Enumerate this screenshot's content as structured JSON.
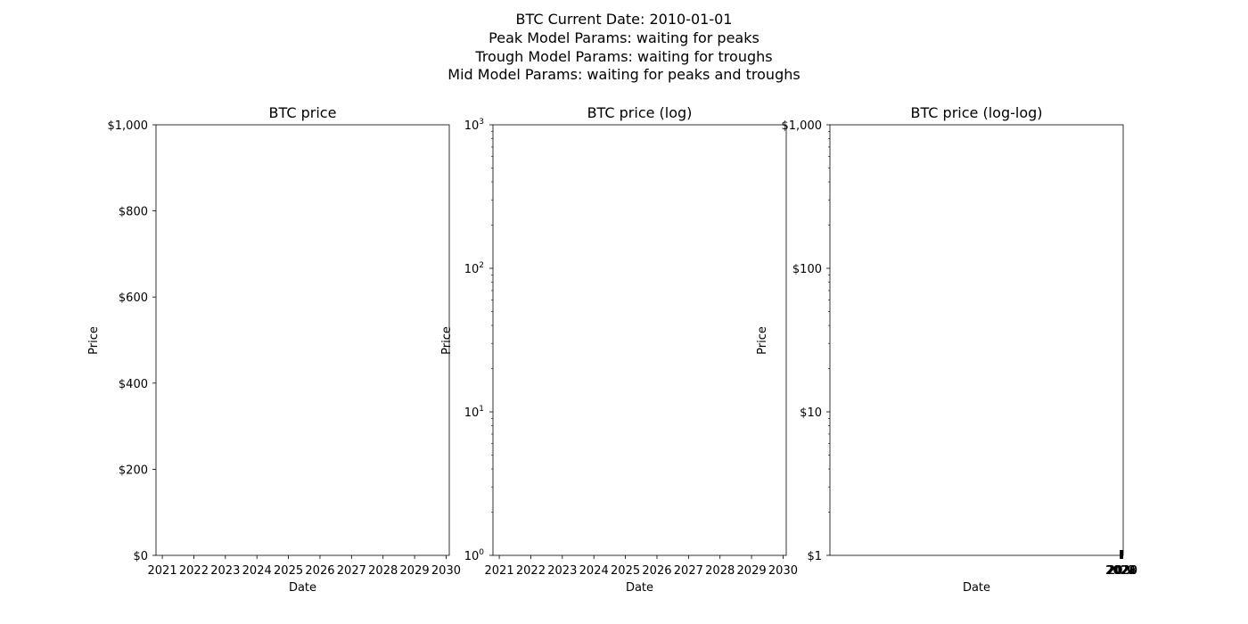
{
  "figure_title": [
    "BTC Current Date: 2010-01-01",
    "Peak Model Params: waiting for peaks",
    "Trough Model Params: waiting for troughs",
    "Mid Model Params: waiting for peaks and troughs"
  ],
  "chart_data": [
    {
      "type": "line",
      "title": "BTC price",
      "xlabel": "Date",
      "ylabel": "Price",
      "xscale": "linear",
      "yscale": "linear",
      "xlim": [
        2020.8,
        2030.1
      ],
      "ylim": [
        0,
        1000
      ],
      "xticks": [
        2021,
        2022,
        2023,
        2024,
        2025,
        2026,
        2027,
        2028,
        2029,
        2030
      ],
      "xtick_labels": [
        "2021",
        "2022",
        "2023",
        "2024",
        "2025",
        "2026",
        "2027",
        "2028",
        "2029",
        "2030"
      ],
      "yticks": [
        0,
        200,
        400,
        600,
        800,
        1000
      ],
      "ytick_labels": [
        "$0",
        "$200",
        "$400",
        "$600",
        "$800",
        "$1,000"
      ],
      "series": []
    },
    {
      "type": "line",
      "title": "BTC price (log)",
      "xlabel": "Date",
      "ylabel": "Price",
      "xscale": "linear",
      "yscale": "log",
      "xlim": [
        2020.8,
        2030.1
      ],
      "ylim": [
        1,
        1000
      ],
      "xticks": [
        2021,
        2022,
        2023,
        2024,
        2025,
        2026,
        2027,
        2028,
        2029,
        2030
      ],
      "xtick_labels": [
        "2021",
        "2022",
        "2023",
        "2024",
        "2025",
        "2026",
        "2027",
        "2028",
        "2029",
        "2030"
      ],
      "yticks": [
        1,
        10,
        100,
        1000
      ],
      "ytick_labels": [
        [
          "10",
          "0"
        ],
        [
          "10",
          "1"
        ],
        [
          "10",
          "2"
        ],
        [
          "10",
          "3"
        ]
      ],
      "series": []
    },
    {
      "type": "line",
      "title": "BTC price (log-log)",
      "xlabel": "Date",
      "ylabel": "Price",
      "xscale": "log",
      "yscale": "log",
      "ylim": [
        1,
        1000
      ],
      "xtick_labels_overlapping": [
        "2020",
        "2022",
        "2024",
        "2026",
        "2028",
        "2030"
      ],
      "yticks": [
        1,
        10,
        100,
        1000
      ],
      "ytick_labels": [
        "$1",
        "$10",
        "$100",
        "$1,000"
      ],
      "series": []
    }
  ]
}
